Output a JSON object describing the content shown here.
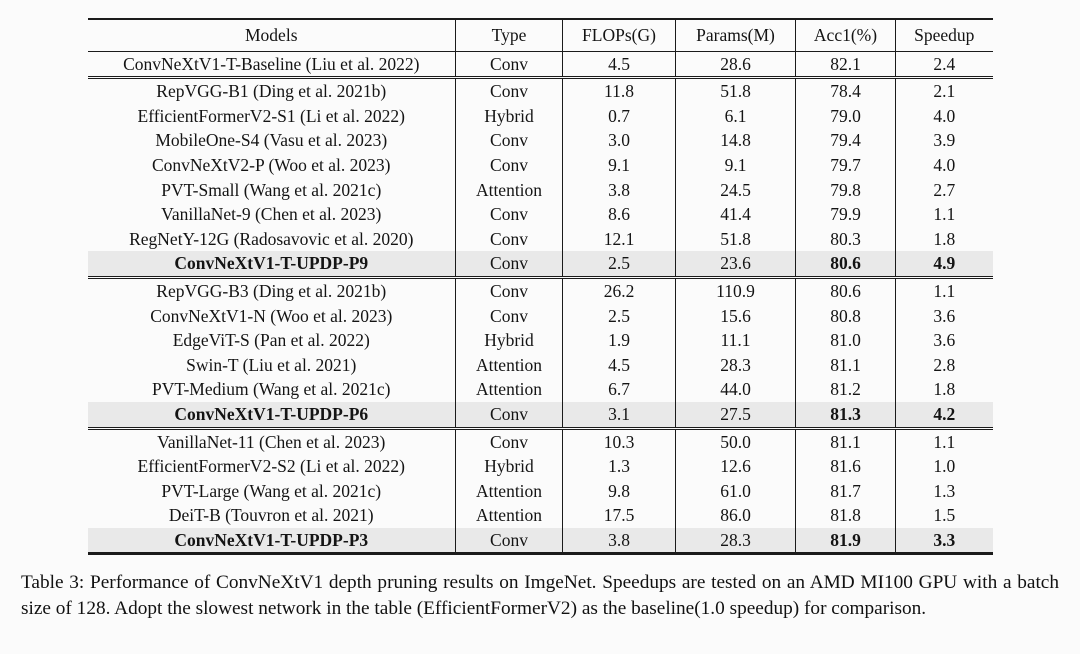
{
  "table": {
    "columns": [
      "Models",
      "Type",
      "FLOPs(G)",
      "Params(M)",
      "Acc1(%)",
      "Speedup"
    ],
    "groups": [
      {
        "rows": [
          {
            "model": "ConvNeXtV1-T-Baseline (Liu et al. 2022)",
            "type": "Conv",
            "flops": "4.5",
            "params": "28.6",
            "acc1": "82.1",
            "speedup": "2.4",
            "highlight": false
          }
        ]
      },
      {
        "rows": [
          {
            "model": "RepVGG-B1 (Ding et al. 2021b)",
            "type": "Conv",
            "flops": "11.8",
            "params": "51.8",
            "acc1": "78.4",
            "speedup": "2.1",
            "highlight": false
          },
          {
            "model": "EfficientFormerV2-S1 (Li et al. 2022)",
            "type": "Hybrid",
            "flops": "0.7",
            "params": "6.1",
            "acc1": "79.0",
            "speedup": "4.0",
            "highlight": false
          },
          {
            "model": "MobileOne-S4 (Vasu et al. 2023)",
            "type": "Conv",
            "flops": "3.0",
            "params": "14.8",
            "acc1": "79.4",
            "speedup": "3.9",
            "highlight": false
          },
          {
            "model": "ConvNeXtV2-P (Woo et al. 2023)",
            "type": "Conv",
            "flops": "9.1",
            "params": "9.1",
            "acc1": "79.7",
            "speedup": "4.0",
            "highlight": false
          },
          {
            "model": "PVT-Small (Wang et al. 2021c)",
            "type": "Attention",
            "flops": "3.8",
            "params": "24.5",
            "acc1": "79.8",
            "speedup": "2.7",
            "highlight": false
          },
          {
            "model": "VanillaNet-9 (Chen et al. 2023)",
            "type": "Conv",
            "flops": "8.6",
            "params": "41.4",
            "acc1": "79.9",
            "speedup": "1.1",
            "highlight": false
          },
          {
            "model": "RegNetY-12G (Radosavovic et al. 2020)",
            "type": "Conv",
            "flops": "12.1",
            "params": "51.8",
            "acc1": "80.3",
            "speedup": "1.8",
            "highlight": false
          },
          {
            "model": "ConvNeXtV1-T-UPDP-P9",
            "type": "Conv",
            "flops": "2.5",
            "params": "23.6",
            "acc1": "80.6",
            "speedup": "4.9",
            "highlight": true
          }
        ]
      },
      {
        "rows": [
          {
            "model": "RepVGG-B3 (Ding et al. 2021b)",
            "type": "Conv",
            "flops": "26.2",
            "params": "110.9",
            "acc1": "80.6",
            "speedup": "1.1",
            "highlight": false
          },
          {
            "model": "ConvNeXtV1-N (Woo et al. 2023)",
            "type": "Conv",
            "flops": "2.5",
            "params": "15.6",
            "acc1": "80.8",
            "speedup": "3.6",
            "highlight": false
          },
          {
            "model": "EdgeViT-S (Pan et al. 2022)",
            "type": "Hybrid",
            "flops": "1.9",
            "params": "11.1",
            "acc1": "81.0",
            "speedup": "3.6",
            "highlight": false
          },
          {
            "model": "Swin-T (Liu et al. 2021)",
            "type": "Attention",
            "flops": "4.5",
            "params": "28.3",
            "acc1": "81.1",
            "speedup": "2.8",
            "highlight": false
          },
          {
            "model": "PVT-Medium (Wang et al. 2021c)",
            "type": "Attention",
            "flops": "6.7",
            "params": "44.0",
            "acc1": "81.2",
            "speedup": "1.8",
            "highlight": false
          },
          {
            "model": "ConvNeXtV1-T-UPDP-P6",
            "type": "Conv",
            "flops": "3.1",
            "params": "27.5",
            "acc1": "81.3",
            "speedup": "4.2",
            "highlight": true
          }
        ]
      },
      {
        "rows": [
          {
            "model": "VanillaNet-11 (Chen et al. 2023)",
            "type": "Conv",
            "flops": "10.3",
            "params": "50.0",
            "acc1": "81.1",
            "speedup": "1.1",
            "highlight": false
          },
          {
            "model": "EfficientFormerV2-S2 (Li et al. 2022)",
            "type": "Hybrid",
            "flops": "1.3",
            "params": "12.6",
            "acc1": "81.6",
            "speedup": "1.0",
            "highlight": false
          },
          {
            "model": "PVT-Large (Wang et al. 2021c)",
            "type": "Attention",
            "flops": "9.8",
            "params": "61.0",
            "acc1": "81.7",
            "speedup": "1.3",
            "highlight": false
          },
          {
            "model": "DeiT-B (Touvron et al. 2021)",
            "type": "Attention",
            "flops": "17.5",
            "params": "86.0",
            "acc1": "81.8",
            "speedup": "1.5",
            "highlight": false
          },
          {
            "model": "ConvNeXtV1-T-UPDP-P3",
            "type": "Conv",
            "flops": "3.8",
            "params": "28.3",
            "acc1": "81.9",
            "speedup": "3.3",
            "highlight": true
          }
        ]
      }
    ]
  },
  "caption": "Table 3: Performance of ConvNeXtV1 depth pruning results on ImgeNet. Speedups are tested on an AMD MI100 GPU with a batch size of 128. Adopt the slowest network in the table (EfficientFormerV2) as the baseline(1.0 speedup) for comparison.",
  "colors": {
    "highlight_bg": "#e9e9e9",
    "rule": "#1b1b1b",
    "text": "#141414",
    "page_bg": "#fbfbfb"
  }
}
